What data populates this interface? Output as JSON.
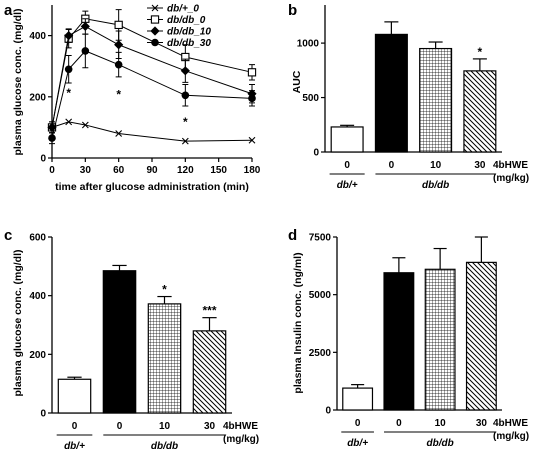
{
  "figure": {
    "colors": {
      "ink": "#000000",
      "background": "#ffffff"
    }
  },
  "chart_data": [
    {
      "id": "a",
      "panel_letter": "a",
      "type": "line",
      "xlabel": "time after glucose administration (min)",
      "ylabel": "plasma glucose conc. (mg/dl)",
      "xlim": [
        0,
        180
      ],
      "ylim": [
        0,
        500
      ],
      "xticks": [
        "0",
        "30",
        "60",
        "90",
        "120",
        "150",
        "180"
      ],
      "yticks": [
        "0",
        "200",
        "400"
      ],
      "x": [
        0,
        15,
        30,
        60,
        120,
        180
      ],
      "legend_position": "top-right",
      "series": [
        {
          "name": "db/+_0",
          "marker": "x",
          "values": [
            100,
            118,
            108,
            80,
            55,
            58
          ],
          "errors": [
            0,
            0,
            0,
            0,
            0,
            0
          ]
        },
        {
          "name": "db/db_0",
          "marker": "open-square",
          "values": [
            100,
            390,
            455,
            435,
            330,
            280
          ],
          "errors": [
            18,
            30,
            25,
            50,
            40,
            25
          ]
        },
        {
          "name": "db/db_10",
          "marker": "filled-diamond",
          "values": [
            100,
            400,
            430,
            370,
            285,
            210
          ],
          "errors": [
            18,
            22,
            25,
            45,
            38,
            30
          ]
        },
        {
          "name": "db/db_30",
          "marker": "filled-circle",
          "values": [
            65,
            290,
            350,
            305,
            205,
            195
          ],
          "errors": [
            18,
            45,
            55,
            40,
            35,
            25
          ]
        }
      ],
      "annotations": [
        {
          "text": "*",
          "x": 15,
          "y": 225
        },
        {
          "text": "*",
          "x": 60,
          "y": 220
        },
        {
          "text": "*",
          "x": 120,
          "y": 130
        }
      ]
    },
    {
      "id": "b",
      "panel_letter": "b",
      "type": "bar",
      "ylabel": "AUC",
      "ylim": [
        0,
        1350
      ],
      "yticks": [
        "0",
        "500",
        "1000"
      ],
      "categories": [
        "0",
        "0",
        "10",
        "30"
      ],
      "values": [
        230,
        1080,
        950,
        745
      ],
      "errors": [
        15,
        115,
        60,
        110
      ],
      "fills": [
        "white",
        "black",
        "grid",
        "diagonal"
      ],
      "significance": [
        "",
        "",
        "",
        "*"
      ],
      "dose_label": "4bHWE",
      "dose_unit": "(mg/kg)",
      "groups": [
        "db/+",
        "db/db"
      ]
    },
    {
      "id": "c",
      "panel_letter": "c",
      "type": "bar",
      "ylabel": "plasma glucose conc. (mg/dl)",
      "ylim": [
        0,
        600
      ],
      "yticks": [
        "0",
        "200",
        "400",
        "600"
      ],
      "categories": [
        "0",
        "0",
        "10",
        "30"
      ],
      "values": [
        115,
        485,
        372,
        280
      ],
      "errors": [
        7,
        18,
        25,
        45
      ],
      "fills": [
        "white",
        "black",
        "grid",
        "diagonal"
      ],
      "significance": [
        "",
        "",
        "*",
        "***"
      ],
      "dose_label": "4bHWE",
      "dose_unit": "(mg/kg)",
      "groups": [
        "db/+",
        "db/db"
      ]
    },
    {
      "id": "d",
      "panel_letter": "d",
      "type": "bar",
      "ylabel": "plasma Insulin conc. (ng/ml)",
      "ylim": [
        0,
        7500
      ],
      "yticks": [
        "0",
        "2500",
        "5000",
        "7500"
      ],
      "categories": [
        "0",
        "0",
        "10",
        "30"
      ],
      "values": [
        950,
        5950,
        6100,
        6400
      ],
      "errors": [
        150,
        650,
        900,
        1100
      ],
      "fills": [
        "white",
        "black",
        "grid",
        "diagonal"
      ],
      "significance": [
        "",
        "",
        "",
        ""
      ],
      "dose_label": "4bHWE",
      "dose_unit": "(mg/kg)",
      "groups": [
        "db/+",
        "db/db"
      ]
    }
  ]
}
